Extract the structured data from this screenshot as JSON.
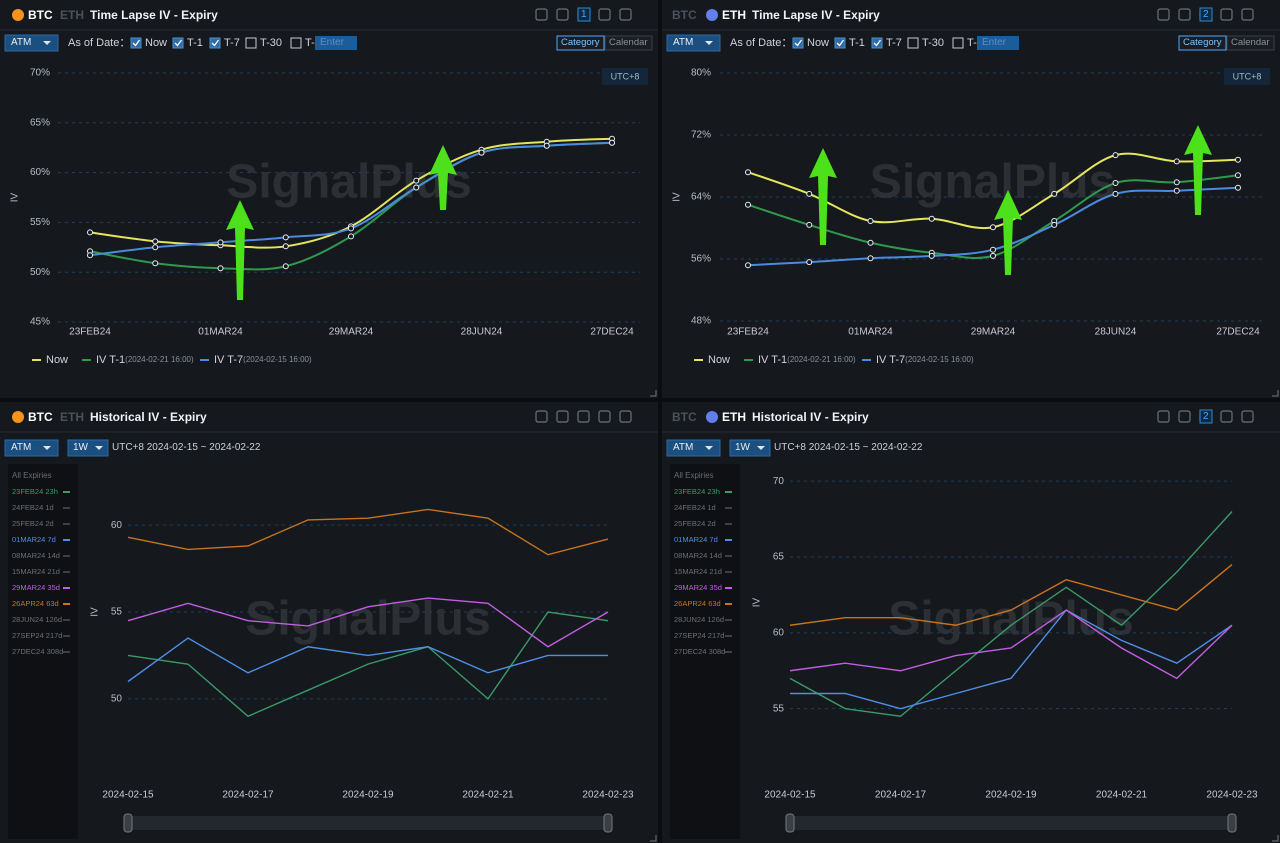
{
  "panels": [
    {
      "tabs": [
        "BTC",
        "ETH"
      ],
      "active_tab": 0,
      "title": "Time Lapse IV - Expiry",
      "badge": "1",
      "select": "ATM",
      "as_of_label": "As of Date：",
      "checks": [
        {
          "label": "Now",
          "checked": true
        },
        {
          "label": "T-1",
          "checked": true
        },
        {
          "label": "T-7",
          "checked": true
        },
        {
          "label": "T-30",
          "checked": false
        },
        {
          "label": "T-",
          "checked": false
        }
      ],
      "input_placeholder": "Enter",
      "modes": [
        "Category",
        "Calendar"
      ],
      "active_mode": 0,
      "watermark": "SignalPlus"
    },
    {
      "tabs": [
        "BTC",
        "ETH"
      ],
      "active_tab": 1,
      "title": "Time Lapse IV - Expiry",
      "badge": "2",
      "select": "ATM",
      "as_of_label": "As of Date：",
      "checks": [
        {
          "label": "Now",
          "checked": true
        },
        {
          "label": "T-1",
          "checked": true
        },
        {
          "label": "T-7",
          "checked": true
        },
        {
          "label": "T-30",
          "checked": false
        },
        {
          "label": "T-",
          "checked": false
        }
      ],
      "input_placeholder": "Enter",
      "modes": [
        "Category",
        "Calendar"
      ],
      "active_mode": 0,
      "watermark": "SignalPlus"
    },
    {
      "tabs": [
        "BTC",
        "ETH"
      ],
      "active_tab": 0,
      "title": "Historical IV - Expiry",
      "select": "ATM",
      "period": "1W",
      "range": "UTC+8 2024-02-15 ~ 2024-02-22",
      "watermark": "SignalPlus"
    },
    {
      "tabs": [
        "BTC",
        "ETH"
      ],
      "active_tab": 1,
      "title": "Historical IV - Expiry",
      "badge": "2",
      "select": "ATM",
      "period": "1W",
      "range": "UTC+8 2024-02-15 ~ 2024-02-22",
      "watermark": "SignalPlus"
    }
  ],
  "chart_data": [
    {
      "type": "curve",
      "y_label": "IV",
      "timezone": "UTC+8",
      "categories": [
        "23FEB24",
        null,
        "01MAR24",
        null,
        "29MAR24",
        null,
        "28JUN24",
        null,
        "27DEC24"
      ],
      "ylim": [
        45,
        70
      ],
      "yticks": [
        {
          "value": 45,
          "label": "45%"
        },
        {
          "value": 50,
          "label": "50%"
        },
        {
          "value": 55,
          "label": "55%"
        },
        {
          "value": 60,
          "label": "60%"
        },
        {
          "value": 65,
          "label": "65%"
        },
        {
          "value": 70,
          "label": "70%"
        }
      ],
      "grid": true,
      "series": [
        {
          "name": "Now",
          "color": "#e4e55c",
          "values": [
            54.0,
            53.1,
            52.7,
            52.6,
            54.6,
            59.2,
            62.3,
            63.1,
            63.4
          ]
        },
        {
          "name": "IV T-1",
          "as_of": "(2024-02-21 16:00)",
          "color": "#2f9a4c",
          "values": [
            52.1,
            50.9,
            50.4,
            50.6,
            53.6,
            58.5,
            62.0,
            62.7,
            63.0
          ]
        },
        {
          "name": "IV T-7",
          "as_of": "(2024-02-15 16:00)",
          "color": "#4a8be0",
          "values": [
            51.7,
            52.5,
            53.0,
            53.5,
            54.4,
            58.5,
            62.0,
            62.7,
            63.0
          ]
        }
      ]
    },
    {
      "type": "curve",
      "y_label": "IV",
      "timezone": "UTC+8",
      "categories": [
        "23FEB24",
        null,
        "01MAR24",
        null,
        "29MAR24",
        null,
        "28JUN24",
        null,
        "27DEC24"
      ],
      "ylim": [
        48,
        80
      ],
      "yticks": [
        {
          "value": 48,
          "label": "48%"
        },
        {
          "value": 56,
          "label": "56%"
        },
        {
          "value": 64,
          "label": "64%"
        },
        {
          "value": 72,
          "label": "72%"
        },
        {
          "value": 80,
          "label": "80%"
        }
      ],
      "grid": true,
      "series": [
        {
          "name": "Now",
          "color": "#e4e55c",
          "values": [
            67.2,
            64.4,
            60.9,
            61.2,
            60.1,
            64.4,
            69.4,
            68.6,
            68.8
          ]
        },
        {
          "name": "IV T-1",
          "as_of": "(2024-02-21 16:00)",
          "color": "#2f9a4c",
          "values": [
            63.0,
            60.4,
            58.1,
            56.8,
            56.4,
            60.9,
            65.8,
            65.9,
            66.8
          ]
        },
        {
          "name": "IV T-7",
          "as_of": "(2024-02-15 16:00)",
          "color": "#4a8be0",
          "values": [
            55.2,
            55.6,
            56.1,
            56.4,
            57.2,
            60.4,
            64.4,
            64.8,
            65.2
          ]
        }
      ]
    },
    {
      "type": "line",
      "y_label": "IV",
      "legend_title": "All Expiries",
      "x": [
        "2024-02-15",
        "2024-02-16",
        "2024-02-17",
        "2024-02-18",
        "2024-02-19",
        "2024-02-20",
        "2024-02-21",
        "2024-02-22",
        "2024-02-23"
      ],
      "xlim": [
        "2024-02-15",
        "2024-02-23"
      ],
      "xticks": [
        "2024-02-15",
        "2024-02-17",
        "2024-02-19",
        "2024-02-21",
        "2024-02-23"
      ],
      "ylim": [
        47,
        63
      ],
      "yticks": [
        50,
        55,
        60
      ],
      "grid": true,
      "series": [
        {
          "name": "23FEB24 23h",
          "visible": true,
          "color": "#3a9a68",
          "values": [
            52.5,
            52.0,
            49.0,
            50.5,
            52.0,
            53.0,
            50.0,
            55.0,
            54.5
          ]
        },
        {
          "name": "24FEB24 1d",
          "visible": false
        },
        {
          "name": "25FEB24 2d",
          "visible": false
        },
        {
          "name": "01MAR24 7d",
          "visible": true,
          "color": "#4d8fe6",
          "values": [
            51.0,
            53.5,
            51.5,
            53.0,
            52.5,
            53.0,
            51.5,
            52.5,
            52.5
          ]
        },
        {
          "name": "08MAR24 14d",
          "visible": false
        },
        {
          "name": "15MAR24 21d",
          "visible": false
        },
        {
          "name": "29MAR24 35d",
          "visible": true,
          "color": "#c25ee2",
          "values": [
            54.5,
            55.5,
            54.5,
            54.2,
            55.3,
            55.8,
            55.5,
            53.0,
            55.0
          ]
        },
        {
          "name": "26APR24 63d",
          "visible": true,
          "color": "#c8741e",
          "values": [
            59.3,
            58.6,
            58.8,
            60.3,
            60.4,
            60.9,
            60.4,
            58.3,
            59.2
          ]
        },
        {
          "name": "28JUN24 126d",
          "visible": false
        },
        {
          "name": "27SEP24 217d",
          "visible": false
        },
        {
          "name": "27DEC24 308d",
          "visible": false
        }
      ]
    },
    {
      "type": "line",
      "y_label": "IV",
      "legend_title": "All Expiries",
      "x": [
        "2024-02-15",
        "2024-02-16",
        "2024-02-17",
        "2024-02-18",
        "2024-02-19",
        "2024-02-20",
        "2024-02-21",
        "2024-02-22",
        "2024-02-23"
      ],
      "xlim": [
        "2024-02-15",
        "2024-02-23"
      ],
      "xticks": [
        "2024-02-15",
        "2024-02-17",
        "2024-02-19",
        "2024-02-21",
        "2024-02-23"
      ],
      "ylim": [
        53,
        71
      ],
      "yticks": [
        55,
        60,
        65,
        70
      ],
      "grid": true,
      "series": [
        {
          "name": "23FEB24 23h",
          "visible": true,
          "color": "#3a9a68",
          "values": [
            57.0,
            55.0,
            54.5,
            57.5,
            60.5,
            63.0,
            60.5,
            64.0,
            68.0
          ]
        },
        {
          "name": "24FEB24 1d",
          "visible": false
        },
        {
          "name": "25FEB24 2d",
          "visible": false
        },
        {
          "name": "01MAR24 7d",
          "visible": true,
          "color": "#4d8fe6",
          "values": [
            56.0,
            56.0,
            55.0,
            56.0,
            57.0,
            61.5,
            59.5,
            58.0,
            60.5
          ]
        },
        {
          "name": "08MAR24 14d",
          "visible": false
        },
        {
          "name": "15MAR24 21d",
          "visible": false
        },
        {
          "name": "29MAR24 35d",
          "visible": true,
          "color": "#c25ee2",
          "values": [
            57.5,
            58.0,
            57.5,
            58.5,
            59.0,
            61.5,
            59.0,
            57.0,
            60.5
          ]
        },
        {
          "name": "26APR24 63d",
          "visible": true,
          "color": "#c8741e",
          "values": [
            60.5,
            61.0,
            61.0,
            60.5,
            61.5,
            63.5,
            62.5,
            61.5,
            64.5
          ]
        },
        {
          "name": "28JUN24 126d",
          "visible": false
        },
        {
          "name": "27SEP24 217d",
          "visible": false
        },
        {
          "name": "27DEC24 308d",
          "visible": false
        }
      ]
    }
  ]
}
